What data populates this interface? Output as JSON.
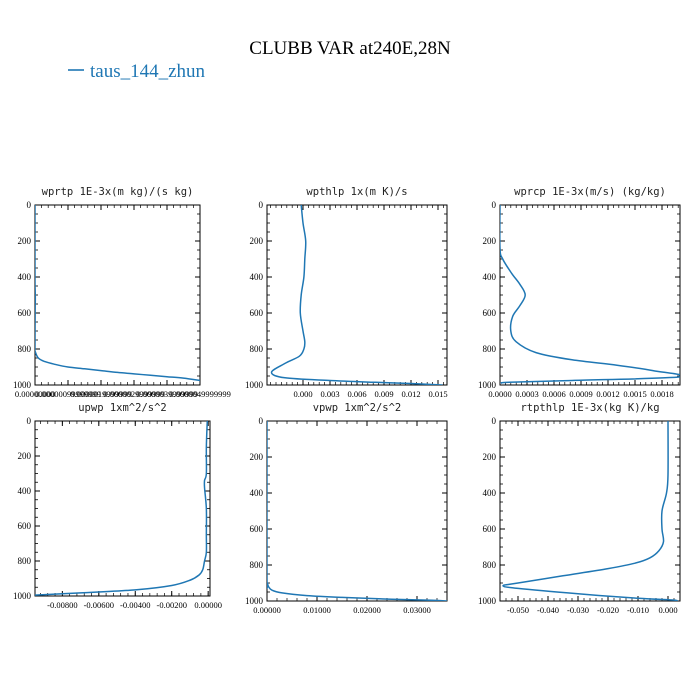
{
  "figure": {
    "title": "CLUBB VAR at240E,28N",
    "legend": {
      "label": "taus_144_zhun",
      "color": "#1f77b4"
    }
  },
  "chart_data": [
    {
      "type": "line",
      "title": "wprtp  1E-3x(m kg)/(s kg)",
      "xlim": [
        0,
        4.9999999e-06
      ],
      "ylim": [
        1000,
        0
      ],
      "xticks": [
        0,
        9.9999999e-07,
        1.9999999e-06,
        2.9999999e-06,
        3.9999999e-06,
        4.9999999e-06
      ],
      "xtick_labels": [
        "0.00000000",
        "0.00000099999999",
        "0.0000019999999",
        "0.0000029999999",
        "0.0000039999999",
        "0.0000049999999"
      ],
      "yticks": [
        0,
        200,
        400,
        600,
        800,
        1000
      ],
      "ytick_labels": [
        "0",
        "200",
        "400",
        "600",
        "800",
        "1000"
      ],
      "series": [
        {
          "color": "#1f77b4",
          "x": [
            0,
            0,
            5e-09,
            1e-08,
            5e-09,
            0,
            0.0,
            1e-07,
            3e-07,
            6e-07,
            1e-06,
            1.5e-06,
            2e-06,
            2.5e-06,
            3e-06,
            3.5e-06,
            4e-06,
            4.5e-06,
            5e-06
          ],
          "y": [
            0,
            400,
            470,
            520,
            580,
            790,
            810,
            850,
            870,
            885,
            900,
            910,
            920,
            930,
            938,
            946,
            954,
            962,
            975
          ]
        }
      ]
    },
    {
      "type": "line",
      "title": "wpthlp  1x(m K)/s",
      "xlim": [
        -0.004,
        0.016
      ],
      "ylim": [
        1000,
        0
      ],
      "xticks": [
        0,
        0.003,
        0.006,
        0.009,
        0.012,
        0.015
      ],
      "xtick_labels": [
        "0.000",
        "0.003",
        "0.006",
        "0.009",
        "0.012",
        "0.015"
      ],
      "yticks": [
        0,
        200,
        400,
        600,
        800,
        1000
      ],
      "ytick_labels": [
        "0",
        "200",
        "400",
        "600",
        "800",
        "1000"
      ],
      "series": [
        {
          "color": "#1f77b4",
          "x": [
            -0.0002,
            0.0,
            0.0003,
            0.0002,
            0.0001,
            -0.0002,
            -0.0003,
            0.0,
            0.0002,
            0.0001,
            -0.0004,
            -0.002,
            -0.0035,
            -0.002,
            0.003,
            0.008,
            0.012,
            0.0155
          ],
          "y": [
            0,
            100,
            200,
            300,
            400,
            500,
            600,
            700,
            760,
            800,
            840,
            880,
            930,
            960,
            975,
            985,
            992,
            1000
          ]
        }
      ]
    },
    {
      "type": "line",
      "title": "wprcp  1E-3x(m/s) (kg/kg)",
      "xlim": [
        0,
        0.002
      ],
      "ylim": [
        1000,
        0
      ],
      "xticks": [
        0,
        0.0003,
        0.0006,
        0.0009,
        0.0012,
        0.0015,
        0.0018
      ],
      "xtick_labels": [
        "0.0000",
        "0.0003",
        "0.0006",
        "0.0009",
        "0.0012",
        "0.0015",
        "0.0018"
      ],
      "yticks": [
        0,
        200,
        400,
        600,
        800,
        1000
      ],
      "ytick_labels": [
        "0",
        "200",
        "400",
        "600",
        "800",
        "1000"
      ],
      "series": [
        {
          "color": "#1f77b4",
          "x": [
            0,
            0,
            3e-05,
            0.00013,
            0.00022,
            0.00028,
            0.00022,
            0.00014,
            0.00012,
            0.00018,
            0.0004,
            0.0008,
            0.0013,
            0.0017,
            0.002,
            0.0008,
            0.0001,
            1e-05
          ],
          "y": [
            0,
            240,
            300,
            380,
            440,
            500,
            560,
            620,
            700,
            760,
            820,
            860,
            890,
            920,
            955,
            975,
            985,
            990
          ]
        }
      ]
    },
    {
      "type": "line",
      "title": "upwp  1xm^2/s^2",
      "xlim": [
        -0.0095,
        0.0001
      ],
      "ylim": [
        1000,
        0
      ],
      "xticks": [
        -0.008,
        -0.006,
        -0.004,
        -0.002,
        0
      ],
      "xtick_labels": [
        "-0.00800",
        "-0.00600",
        "-0.00400",
        "-0.00200",
        "0.00000"
      ],
      "yticks": [
        0,
        200,
        400,
        600,
        800,
        1000
      ],
      "ytick_labels": [
        "0",
        "200",
        "400",
        "600",
        "800",
        "1000"
      ],
      "series": [
        {
          "color": "#1f77b4",
          "x": [
            -5e-05,
            -0.0001,
            -0.0001,
            -0.0002,
            -0.0002,
            -0.0001,
            -0.0001,
            -0.0001,
            -0.0002,
            -0.0003,
            -0.0005,
            -0.001,
            -0.002,
            -0.004,
            -0.007,
            -0.0095
          ],
          "y": [
            0,
            150,
            300,
            340,
            380,
            500,
            650,
            750,
            800,
            850,
            880,
            910,
            940,
            965,
            982,
            995
          ]
        }
      ]
    },
    {
      "type": "line",
      "title": "vpwp  1xm^2/s^2",
      "xlim": [
        0,
        0.036
      ],
      "ylim": [
        1000,
        0
      ],
      "xticks": [
        0,
        0.01,
        0.02,
        0.03
      ],
      "xtick_labels": [
        "0.00000",
        "0.01000",
        "0.02000",
        "0.03000"
      ],
      "yticks": [
        0,
        200,
        400,
        600,
        800,
        1000
      ],
      "ytick_labels": [
        "0",
        "200",
        "400",
        "600",
        "800",
        "1000"
      ],
      "series": [
        {
          "color": "#1f77b4",
          "x": [
            0,
            0,
            0.0001,
            0.0003,
            0.001,
            0.003,
            0.008,
            0.015,
            0.025,
            0.033,
            0.036
          ],
          "y": [
            0,
            850,
            900,
            920,
            940,
            955,
            970,
            980,
            990,
            996,
            1000
          ]
        }
      ]
    },
    {
      "type": "line",
      "title": "rtpthlp  1E-3x(kg K)/kg",
      "xlim": [
        -0.056,
        0.004
      ],
      "ylim": [
        1000,
        0
      ],
      "xticks": [
        -0.05,
        -0.04,
        -0.03,
        -0.02,
        -0.01,
        0
      ],
      "xtick_labels": [
        "-0.050",
        "-0.040",
        "-0.030",
        "-0.020",
        "-0.010",
        "0.000"
      ],
      "yticks": [
        0,
        200,
        400,
        600,
        800,
        1000
      ],
      "ytick_labels": [
        "0",
        "200",
        "400",
        "600",
        "800",
        "1000"
      ],
      "series": [
        {
          "color": "#1f77b4",
          "x": [
            0,
            0,
            -0.0005,
            -0.002,
            -0.002,
            -0.0015,
            -0.003,
            -0.006,
            -0.011,
            -0.02,
            -0.035,
            -0.05,
            -0.055,
            -0.05,
            -0.03,
            -0.01,
            0.002,
            0.0025
          ],
          "y": [
            0,
            300,
            400,
            500,
            600,
            670,
            720,
            760,
            790,
            820,
            860,
            900,
            915,
            930,
            960,
            985,
            995,
            1000
          ]
        }
      ]
    }
  ]
}
